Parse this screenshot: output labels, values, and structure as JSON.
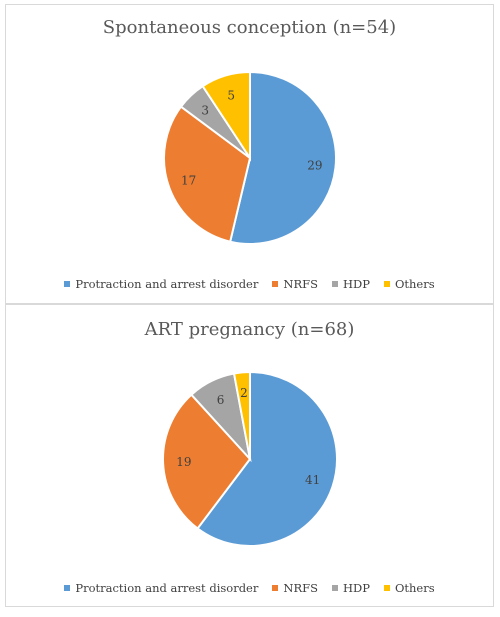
{
  "colors": {
    "protraction": "#5b9bd5",
    "nrfs": "#ed7d31",
    "hdp": "#a5a5a5",
    "others": "#ffc000"
  },
  "chart_data": [
    {
      "type": "pie",
      "title": "Spontaneous conception (n=54)",
      "categories": [
        "Protraction and arrest disorder",
        "NRFS",
        "HDP",
        "Others"
      ],
      "values": [
        29,
        17,
        3,
        5
      ],
      "legend": "bottom"
    },
    {
      "type": "pie",
      "title": "ART pregnancy (n=68)",
      "categories": [
        "Protraction and arrest disorder",
        "NRFS",
        "HDP",
        "Others"
      ],
      "values": [
        41,
        19,
        6,
        2
      ],
      "legend": "bottom"
    }
  ]
}
